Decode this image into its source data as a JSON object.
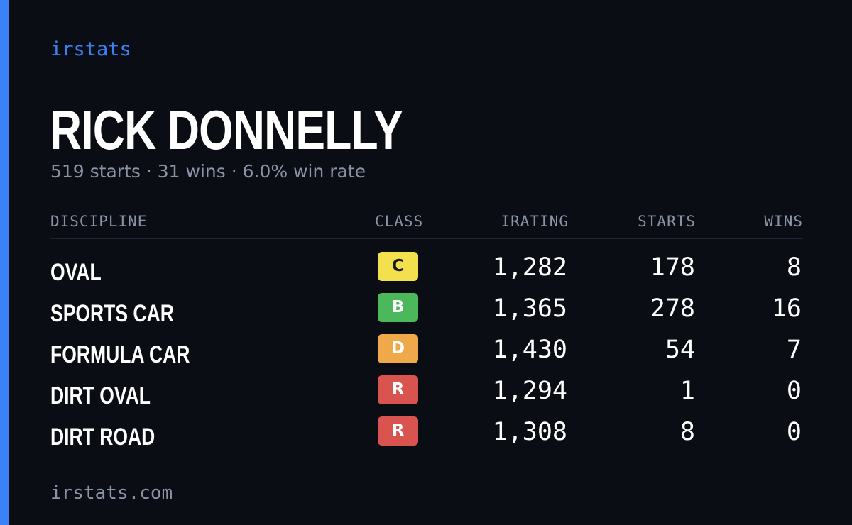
{
  "brand": "irstats",
  "driver": {
    "name": "RICK DONNELLY",
    "summary": "519 starts · 31 wins · 6.0% win rate"
  },
  "table": {
    "headers": {
      "discipline": "DISCIPLINE",
      "class": "CLASS",
      "irating": "IRATING",
      "starts": "STARTS",
      "wins": "WINS"
    },
    "rows": [
      {
        "discipline": "OVAL",
        "class": "C",
        "class_color": "#f2e14c",
        "class_text_color": "#1a1a1a",
        "irating": "1,282",
        "starts": "178",
        "wins": "8"
      },
      {
        "discipline": "SPORTS CAR",
        "class": "B",
        "class_color": "#4cb85c",
        "class_text_color": "#ffffff",
        "irating": "1,365",
        "starts": "278",
        "wins": "16"
      },
      {
        "discipline": "FORMULA CAR",
        "class": "D",
        "class_color": "#f0a94a",
        "class_text_color": "#ffffff",
        "irating": "1,430",
        "starts": "54",
        "wins": "7"
      },
      {
        "discipline": "DIRT OVAL",
        "class": "R",
        "class_color": "#d9534f",
        "class_text_color": "#ffffff",
        "irating": "1,294",
        "starts": "1",
        "wins": "0"
      },
      {
        "discipline": "DIRT ROAD",
        "class": "R",
        "class_color": "#d9534f",
        "class_text_color": "#ffffff",
        "irating": "1,308",
        "starts": "8",
        "wins": "0"
      }
    ]
  },
  "footer": "irstats.com",
  "colors": {
    "background": "#0b0d14",
    "accent": "#3b82f6",
    "muted": "#8b93a7"
  }
}
